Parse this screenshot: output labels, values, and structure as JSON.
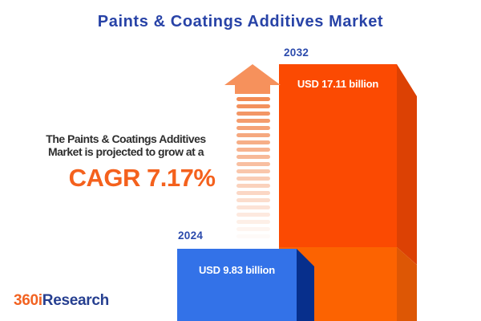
{
  "title": "Paints & Coatings Additives Market",
  "description": {
    "line1": "The Paints & Coatings Additives",
    "line2": "Market is projected to grow at a",
    "cagr_text": "CAGR 7.17%"
  },
  "chart_data": {
    "type": "bar",
    "categories": [
      "2024",
      "2032"
    ],
    "values": [
      9.83,
      17.11
    ],
    "unit": "USD billion",
    "value_labels": [
      "USD 9.83 billion",
      "USD 17.11 billion"
    ],
    "cagr_percent": 7.17,
    "title": "Paints & Coatings Additives Market",
    "xlabel": "",
    "ylabel": "",
    "axes_shown": false,
    "grid": false,
    "legend": "none",
    "style": "3d-extruded bars, growth arrow between bars"
  },
  "arrow": {
    "name": "growth-arrow",
    "direction": "up",
    "stripe_count": 20
  },
  "logo": {
    "prefix": "360i",
    "suffix": "Research"
  },
  "colors": {
    "background": "#FFFFFF",
    "title_blue": "#2843A7",
    "year_label_blue": "#2B4AAC",
    "body_text": "#2E2E2E",
    "cagr_orange": "#F4611D",
    "bar_2024_front": "#3372E8",
    "bar_2024_side": "#072F8C",
    "bar_2032_front_upper": "#FB4A02",
    "bar_2032_front_lower": "#FC6301",
    "bar_2032_side_upper": "#DC4104",
    "bar_2032_side_lower": "#DD5705",
    "arrow_head": "#F6915C",
    "arrow_stripe": "#F28B54",
    "bar_value_text": "#FFFFFF",
    "logo_orange": "#F26322",
    "logo_blue": "#263F90"
  }
}
